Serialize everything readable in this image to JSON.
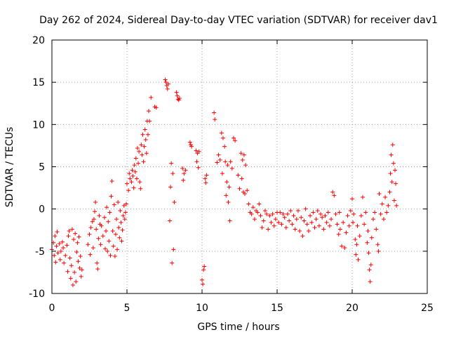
{
  "chart_data": {
    "type": "scatter",
    "title": "Day 262 of 2024, Sidereal Day-to-day VTEC variation (SDTVAR) for receiver dav1",
    "xlabel": "GPS time / hours",
    "ylabel": "SDTVAR / TECUs",
    "xlim": [
      0,
      25
    ],
    "ylim": [
      -10,
      20
    ],
    "xticks": [
      0,
      5,
      10,
      15,
      20,
      25
    ],
    "yticks": [
      -10,
      -5,
      0,
      5,
      10,
      15,
      20
    ],
    "xtick_labels": [
      "0",
      "5",
      "10",
      "15",
      "20",
      "25"
    ],
    "ytick_labels": [
      "-10",
      "-5",
      "0",
      "5",
      "10",
      "15",
      "20"
    ],
    "grid": true,
    "marker": "+",
    "series_color": "#ff0000",
    "series": [
      {
        "name": "SDTVAR",
        "points": [
          [
            0.0,
            -4.8
          ],
          [
            0.1,
            -4.0
          ],
          [
            0.15,
            -5.5
          ],
          [
            0.2,
            -3.2
          ],
          [
            0.25,
            -6.3
          ],
          [
            0.3,
            -4.4
          ],
          [
            0.35,
            -2.7
          ],
          [
            0.4,
            -5.2
          ],
          [
            0.5,
            -4.1
          ],
          [
            0.55,
            -6.0
          ],
          [
            0.6,
            -5.0
          ],
          [
            0.7,
            -3.9
          ],
          [
            0.75,
            -4.6
          ],
          [
            0.8,
            -6.4
          ],
          [
            0.9,
            -5.5
          ],
          [
            1.0,
            -4.3
          ],
          [
            1.05,
            -7.4
          ],
          [
            1.1,
            -3.2
          ],
          [
            1.15,
            -2.6
          ],
          [
            1.2,
            -5.8
          ],
          [
            1.25,
            -8.2
          ],
          [
            1.3,
            -6.7
          ],
          [
            1.35,
            -2.4
          ],
          [
            1.4,
            -9.0
          ],
          [
            1.45,
            -3.6
          ],
          [
            1.5,
            -7.5
          ],
          [
            1.55,
            -2.9
          ],
          [
            1.6,
            -8.6
          ],
          [
            1.65,
            -5.1
          ],
          [
            1.7,
            -4.0
          ],
          [
            1.75,
            -6.2
          ],
          [
            1.8,
            -3.3
          ],
          [
            1.85,
            -7.0
          ],
          [
            1.9,
            -5.6
          ],
          [
            1.95,
            -8.0
          ],
          [
            2.0,
            -7.2
          ],
          [
            2.4,
            -4.2
          ],
          [
            2.5,
            -3.0
          ],
          [
            2.55,
            -5.4
          ],
          [
            2.6,
            -2.2
          ],
          [
            2.7,
            -1.5
          ],
          [
            2.75,
            -4.6
          ],
          [
            2.8,
            -1.2
          ],
          [
            2.85,
            -0.3
          ],
          [
            2.9,
            0.8
          ],
          [
            2.95,
            -2.4
          ],
          [
            3.0,
            -6.4
          ],
          [
            3.05,
            -7.1
          ],
          [
            3.1,
            -3.5
          ],
          [
            3.15,
            -0.8
          ],
          [
            3.2,
            -1.8
          ],
          [
            3.25,
            -4.2
          ],
          [
            3.3,
            -2.0
          ],
          [
            3.4,
            -3.2
          ],
          [
            3.5,
            -1.0
          ],
          [
            3.55,
            -4.7
          ],
          [
            3.6,
            -2.6
          ],
          [
            3.65,
            0.2
          ],
          [
            3.7,
            -5.0
          ],
          [
            3.75,
            -1.5
          ],
          [
            3.8,
            -3.8
          ],
          [
            3.85,
            -0.4
          ],
          [
            3.9,
            -5.5
          ],
          [
            3.95,
            1.5
          ],
          [
            4.0,
            3.3
          ],
          [
            4.05,
            -2.6
          ],
          [
            4.1,
            -4.4
          ],
          [
            4.15,
            0.5
          ],
          [
            4.2,
            -5.6
          ],
          [
            4.25,
            -3.0
          ],
          [
            4.3,
            -1.2
          ],
          [
            4.35,
            -4.8
          ],
          [
            4.4,
            0.8
          ],
          [
            4.45,
            -2.2
          ],
          [
            4.5,
            -3.4
          ],
          [
            4.55,
            -0.2
          ],
          [
            4.6,
            -1.6
          ],
          [
            4.65,
            -3.8
          ],
          [
            4.7,
            -2.5
          ],
          [
            4.75,
            -0.8
          ],
          [
            4.8,
            0.4
          ],
          [
            4.85,
            -1.2
          ],
          [
            4.9,
            -0.4
          ],
          [
            4.95,
            0.6
          ],
          [
            5.0,
            3.0
          ],
          [
            5.1,
            2.2
          ],
          [
            5.15,
            4.2
          ],
          [
            5.2,
            3.6
          ],
          [
            5.3,
            3.2
          ],
          [
            5.35,
            4.6
          ],
          [
            5.4,
            3.9
          ],
          [
            5.45,
            2.5
          ],
          [
            5.5,
            5.2
          ],
          [
            5.55,
            4.4
          ],
          [
            5.6,
            6.0
          ],
          [
            5.65,
            3.6
          ],
          [
            5.7,
            7.2
          ],
          [
            5.75,
            5.4
          ],
          [
            5.8,
            6.8
          ],
          [
            5.85,
            3.2
          ],
          [
            5.9,
            2.4
          ],
          [
            5.95,
            7.6
          ],
          [
            6.0,
            6.4
          ],
          [
            6.05,
            8.8
          ],
          [
            6.1,
            5.6
          ],
          [
            6.15,
            7.4
          ],
          [
            6.2,
            9.4
          ],
          [
            6.25,
            8.2
          ],
          [
            6.3,
            6.6
          ],
          [
            6.35,
            10.4
          ],
          [
            6.4,
            8.8
          ],
          [
            6.45,
            11.6
          ],
          [
            6.5,
            10.4
          ],
          [
            6.6,
            13.2
          ],
          [
            6.85,
            12.1
          ],
          [
            6.95,
            12.0
          ],
          [
            7.55,
            15.3
          ],
          [
            7.6,
            15.0
          ],
          [
            7.65,
            14.6
          ],
          [
            7.7,
            14.2
          ],
          [
            7.75,
            14.8
          ],
          [
            7.85,
            -1.4
          ],
          [
            7.9,
            2.6
          ],
          [
            7.95,
            5.4
          ],
          [
            8.0,
            -6.4
          ],
          [
            8.05,
            4.2
          ],
          [
            8.1,
            -4.8
          ],
          [
            8.15,
            0.8
          ],
          [
            8.3,
            13.8
          ],
          [
            8.35,
            13.4
          ],
          [
            8.4,
            13.0
          ],
          [
            8.45,
            12.9
          ],
          [
            8.5,
            13.1
          ],
          [
            8.7,
            4.8
          ],
          [
            8.75,
            3.4
          ],
          [
            8.8,
            4.2
          ],
          [
            8.9,
            4.6
          ],
          [
            9.2,
            7.9
          ],
          [
            9.25,
            7.6
          ],
          [
            9.3,
            7.4
          ],
          [
            9.6,
            6.9
          ],
          [
            9.65,
            5.6
          ],
          [
            9.7,
            6.6
          ],
          [
            9.75,
            4.9
          ],
          [
            9.8,
            6.8
          ],
          [
            10.0,
            -8.4
          ],
          [
            10.05,
            -8.9
          ],
          [
            10.1,
            -7.2
          ],
          [
            10.15,
            -6.8
          ],
          [
            10.2,
            3.6
          ],
          [
            10.25,
            3.1
          ],
          [
            10.3,
            4.0
          ],
          [
            10.8,
            11.4
          ],
          [
            10.85,
            10.6
          ],
          [
            11.0,
            5.5
          ],
          [
            11.1,
            6.4
          ],
          [
            11.2,
            5.8
          ],
          [
            11.3,
            9.0
          ],
          [
            11.35,
            4.2
          ],
          [
            11.4,
            8.4
          ],
          [
            11.5,
            7.4
          ],
          [
            11.55,
            5.6
          ],
          [
            11.6,
            1.6
          ],
          [
            11.65,
            3.2
          ],
          [
            11.7,
            5.2
          ],
          [
            11.75,
            0.8
          ],
          [
            11.8,
            2.6
          ],
          [
            11.85,
            -1.4
          ],
          [
            11.9,
            5.6
          ],
          [
            12.0,
            4.8
          ],
          [
            12.1,
            8.4
          ],
          [
            12.2,
            8.1
          ],
          [
            12.4,
            4.0
          ],
          [
            12.5,
            2.4
          ],
          [
            12.6,
            6.6
          ],
          [
            12.65,
            3.6
          ],
          [
            12.7,
            5.8
          ],
          [
            12.75,
            2.0
          ],
          [
            12.8,
            6.4
          ],
          [
            12.85,
            1.8
          ],
          [
            12.9,
            5.2
          ],
          [
            13.0,
            2.2
          ],
          [
            13.1,
            0.6
          ],
          [
            13.2,
            -0.4
          ],
          [
            13.3,
            -0.6
          ],
          [
            13.4,
            0.2
          ],
          [
            13.5,
            -1.2
          ],
          [
            13.6,
            -0.2
          ],
          [
            13.7,
            -0.4
          ],
          [
            13.8,
            0.6
          ],
          [
            13.9,
            -0.8
          ],
          [
            14.0,
            -2.2
          ],
          [
            14.1,
            -1.4
          ],
          [
            14.2,
            -0.2
          ],
          [
            14.3,
            -0.6
          ],
          [
            14.4,
            -2.4
          ],
          [
            14.5,
            -0.8
          ],
          [
            14.6,
            -1.6
          ],
          [
            14.7,
            -0.6
          ],
          [
            14.8,
            -2.0
          ],
          [
            14.9,
            -1.2
          ],
          [
            15.0,
            -0.4
          ],
          [
            15.1,
            -1.6
          ],
          [
            15.2,
            -0.4
          ],
          [
            15.3,
            -1.8
          ],
          [
            15.4,
            -0.6
          ],
          [
            15.5,
            -1.0
          ],
          [
            15.6,
            -2.2
          ],
          [
            15.7,
            -0.6
          ],
          [
            15.8,
            -1.4
          ],
          [
            15.9,
            -0.2
          ],
          [
            16.0,
            -1.8
          ],
          [
            16.1,
            -0.8
          ],
          [
            16.2,
            -2.4
          ],
          [
            16.3,
            -1.2
          ],
          [
            16.4,
            -0.2
          ],
          [
            16.5,
            -2.6
          ],
          [
            16.6,
            -1.0
          ],
          [
            16.7,
            -3.2
          ],
          [
            16.8,
            -1.4
          ],
          [
            16.9,
            0.0
          ],
          [
            17.0,
            -1.8
          ],
          [
            17.1,
            -2.6
          ],
          [
            17.2,
            -0.8
          ],
          [
            17.3,
            -1.6
          ],
          [
            17.4,
            -0.4
          ],
          [
            17.5,
            -2.2
          ],
          [
            17.6,
            -1.2
          ],
          [
            17.7,
            -0.2
          ],
          [
            17.8,
            -2.0
          ],
          [
            17.9,
            -0.6
          ],
          [
            18.0,
            -1.0
          ],
          [
            18.1,
            -2.4
          ],
          [
            18.2,
            -0.8
          ],
          [
            18.3,
            -1.6
          ],
          [
            18.4,
            -0.4
          ],
          [
            18.5,
            -2.0
          ],
          [
            18.6,
            -1.2
          ],
          [
            18.7,
            2.0
          ],
          [
            18.8,
            1.6
          ],
          [
            18.9,
            -0.6
          ],
          [
            19.0,
            -1.8
          ],
          [
            19.1,
            -3.0
          ],
          [
            19.15,
            -0.4
          ],
          [
            19.2,
            -2.4
          ],
          [
            19.3,
            -4.4
          ],
          [
            19.4,
            -1.6
          ],
          [
            19.5,
            -4.6
          ],
          [
            19.6,
            -2.8
          ],
          [
            19.7,
            -0.8
          ],
          [
            19.8,
            -2.0
          ],
          [
            19.9,
            -0.2
          ],
          [
            20.0,
            1.2
          ],
          [
            20.05,
            -1.6
          ],
          [
            20.1,
            -0.6
          ],
          [
            20.2,
            -3.6
          ],
          [
            20.25,
            -5.4
          ],
          [
            20.3,
            -4.2
          ],
          [
            20.35,
            -2.0
          ],
          [
            20.4,
            -6.0
          ],
          [
            20.5,
            -3.2
          ],
          [
            20.6,
            -0.8
          ],
          [
            20.7,
            1.4
          ],
          [
            20.8,
            -1.8
          ],
          [
            20.9,
            -0.4
          ],
          [
            21.0,
            -4.0
          ],
          [
            21.05,
            -2.6
          ],
          [
            21.1,
            -5.2
          ],
          [
            21.15,
            -7.2
          ],
          [
            21.2,
            -8.6
          ],
          [
            21.25,
            -6.6
          ],
          [
            21.3,
            -3.4
          ],
          [
            21.4,
            -1.2
          ],
          [
            21.5,
            -0.4
          ],
          [
            21.6,
            -2.4
          ],
          [
            21.7,
            -4.2
          ],
          [
            21.75,
            -5.0
          ],
          [
            21.8,
            1.8
          ],
          [
            21.9,
            -0.6
          ],
          [
            22.0,
            0.6
          ],
          [
            22.1,
            -1.2
          ],
          [
            22.2,
            1.4
          ],
          [
            22.3,
            -0.4
          ],
          [
            22.4,
            0.4
          ],
          [
            22.5,
            2.0
          ],
          [
            22.55,
            4.2
          ],
          [
            22.6,
            6.4
          ],
          [
            22.65,
            3.2
          ],
          [
            22.7,
            7.6
          ],
          [
            22.75,
            5.4
          ],
          [
            22.8,
            1.0
          ],
          [
            22.85,
            4.6
          ],
          [
            22.9,
            3.0
          ],
          [
            22.95,
            0.4
          ]
        ]
      }
    ]
  }
}
